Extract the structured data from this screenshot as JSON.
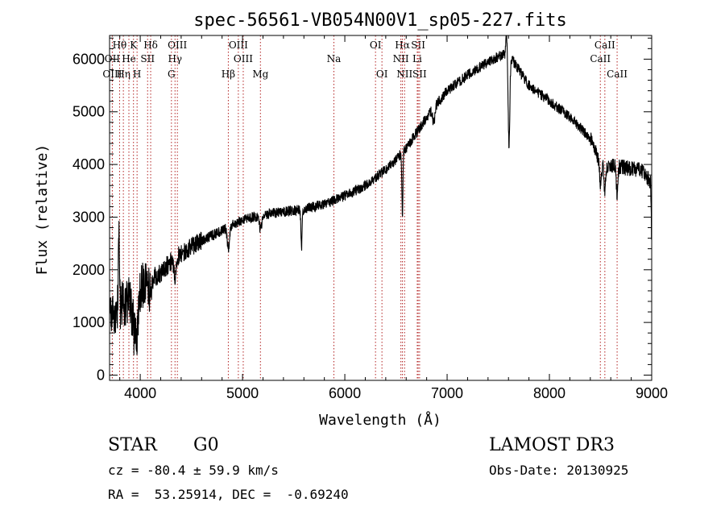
{
  "chart_data": {
    "type": "line",
    "title": "spec-56561-VB054N00V1_sp05-227.fits",
    "xlabel": "Wavelength (Å)",
    "ylabel": "Flux (relative)",
    "xlim": [
      3700,
      9000
    ],
    "ylim": [
      -100,
      6450
    ],
    "xticks": [
      4000,
      5000,
      6000,
      7000,
      8000,
      9000
    ],
    "yticks": [
      0,
      1000,
      2000,
      3000,
      4000,
      5000,
      6000
    ],
    "grid": false,
    "series_color": "#000000",
    "line_color": "#b22222",
    "continuum_points": [
      [
        3700,
        1100
      ],
      [
        3800,
        1300
      ],
      [
        3900,
        1450
      ],
      [
        4000,
        1650
      ],
      [
        4100,
        1800
      ],
      [
        4200,
        1950
      ],
      [
        4300,
        2150
      ],
      [
        4400,
        2300
      ],
      [
        4500,
        2450
      ],
      [
        4600,
        2550
      ],
      [
        4700,
        2650
      ],
      [
        4800,
        2750
      ],
      [
        4900,
        2850
      ],
      [
        5000,
        2950
      ],
      [
        5100,
        3000
      ],
      [
        5200,
        3050
      ],
      [
        5400,
        3100
      ],
      [
        5600,
        3150
      ],
      [
        5800,
        3250
      ],
      [
        6000,
        3400
      ],
      [
        6200,
        3600
      ],
      [
        6400,
        3900
      ],
      [
        6600,
        4300
      ],
      [
        6800,
        4900
      ],
      [
        7000,
        5400
      ],
      [
        7200,
        5700
      ],
      [
        7400,
        5950
      ],
      [
        7500,
        6050
      ],
      [
        7600,
        6100
      ],
      [
        7700,
        5800
      ],
      [
        7800,
        5500
      ],
      [
        8000,
        5200
      ],
      [
        8200,
        4900
      ],
      [
        8400,
        4500
      ],
      [
        8500,
        4000
      ],
      [
        8700,
        3950
      ],
      [
        8900,
        3900
      ],
      [
        9000,
        3650
      ]
    ],
    "absorption_features": [
      {
        "center": 3934,
        "depth": 900,
        "width": 12
      },
      {
        "center": 3969,
        "depth": 800,
        "width": 12
      },
      {
        "center": 4101,
        "depth": 300,
        "width": 10
      },
      {
        "center": 4340,
        "depth": 350,
        "width": 10
      },
      {
        "center": 4861,
        "depth": 450,
        "width": 10
      },
      {
        "center": 5175,
        "depth": 250,
        "width": 14
      },
      {
        "center": 5577,
        "depth": 700,
        "width": 6
      },
      {
        "center": 6563,
        "depth": 1200,
        "width": 5
      },
      {
        "center": 6870,
        "depth": 300,
        "width": 10
      },
      {
        "center": 7605,
        "depth": 1700,
        "width": 8
      },
      {
        "center": 8500,
        "depth": 400,
        "width": 8
      },
      {
        "center": 8542,
        "depth": 500,
        "width": 8
      },
      {
        "center": 8662,
        "depth": 500,
        "width": 8
      }
    ],
    "emission_features": [
      {
        "center": 7580,
        "height": 400,
        "width": 6
      },
      {
        "center": 3790,
        "height": 1400,
        "width": 5
      },
      {
        "center": 3930,
        "height": 700,
        "width": 4
      }
    ],
    "spectral_lines": [
      {
        "label": "Hθ",
        "wavelength": 3798,
        "row": 1
      },
      {
        "label": "OII",
        "wavelength": 3727,
        "row": 2
      },
      {
        "label": "OIII",
        "wavelength": 3727,
        "row": 3
      },
      {
        "label": "Hη",
        "wavelength": 3835,
        "row": 3
      },
      {
        "label": "He",
        "wavelength": 3889,
        "row": 2
      },
      {
        "label": "K",
        "wavelength": 3934,
        "row": 1
      },
      {
        "label": "H",
        "wavelength": 3969,
        "row": 3
      },
      {
        "label": "SII",
        "wavelength": 4072,
        "row": 2
      },
      {
        "label": "Hδ",
        "wavelength": 4102,
        "row": 1
      },
      {
        "label": "OIII",
        "wavelength": 4363,
        "row": 1
      },
      {
        "label": "Hγ",
        "wavelength": 4340,
        "row": 2
      },
      {
        "label": "G",
        "wavelength": 4305,
        "row": 3
      },
      {
        "label": "Hβ",
        "wavelength": 4861,
        "row": 3
      },
      {
        "label": "OIII",
        "wavelength": 4959,
        "row": 1
      },
      {
        "label": "OIII",
        "wavelength": 5007,
        "row": 2
      },
      {
        "label": "Mg",
        "wavelength": 5175,
        "row": 3
      },
      {
        "label": "Na",
        "wavelength": 5893,
        "row": 2
      },
      {
        "label": "OI",
        "wavelength": 6300,
        "row": 1
      },
      {
        "label": "OI",
        "wavelength": 6363,
        "row": 3
      },
      {
        "label": "Hα",
        "wavelength": 6563,
        "row": 1
      },
      {
        "label": "NII",
        "wavelength": 6548,
        "row": 2
      },
      {
        "label": "NII",
        "wavelength": 6584,
        "row": 3
      },
      {
        "label": "SII",
        "wavelength": 6717,
        "row": 1
      },
      {
        "label": "Li",
        "wavelength": 6708,
        "row": 2
      },
      {
        "label": "SII",
        "wavelength": 6731,
        "row": 3
      },
      {
        "label": "CaII",
        "wavelength": 8542,
        "row": 1
      },
      {
        "label": "CaII",
        "wavelength": 8498,
        "row": 2
      },
      {
        "label": "CaII",
        "wavelength": 8662,
        "row": 3
      }
    ]
  },
  "info": {
    "object_type": "STAR",
    "subclass": "G0",
    "survey": "LAMOST DR3",
    "redshift": "cz = -80.4 ± 59.9 km/s",
    "obs_date": "Obs-Date: 20130925",
    "coords": "RA =  53.25914, DEC =  -0.69240"
  }
}
